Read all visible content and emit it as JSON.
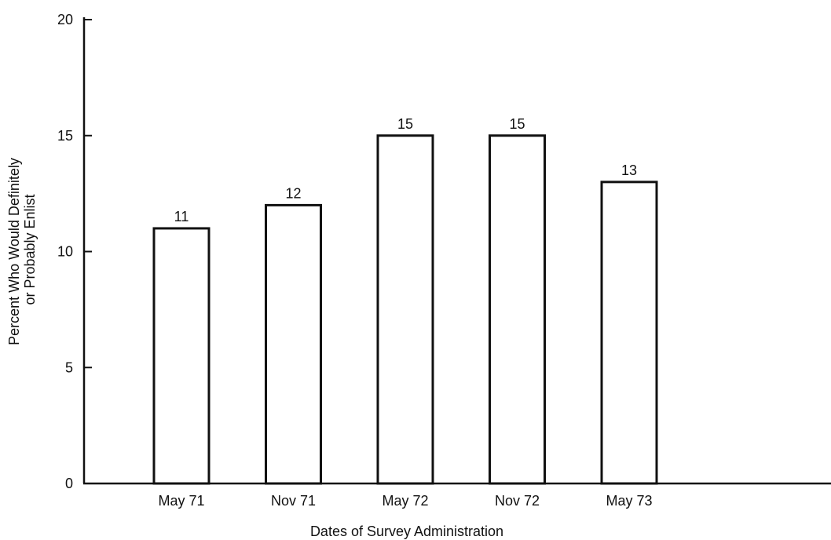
{
  "chart_data": {
    "type": "bar",
    "categories": [
      "May 71",
      "Nov 71",
      "May 72",
      "Nov 72",
      "May 73"
    ],
    "values": [
      11,
      12,
      15,
      15,
      13
    ],
    "data_labels": [
      "11",
      "12",
      "15",
      "15",
      "13"
    ],
    "title": "",
    "xlabel": "Dates of Survey Administration",
    "ylabel_lines": [
      "Percent Who Would Definitely",
      "or Probably Enlist"
    ],
    "ylim": [
      0,
      20
    ],
    "yticks": [
      0,
      5,
      10,
      15,
      20
    ],
    "grid": false,
    "legend": "none",
    "bar_fill": "#ffffff",
    "bar_stroke": "#111111"
  }
}
